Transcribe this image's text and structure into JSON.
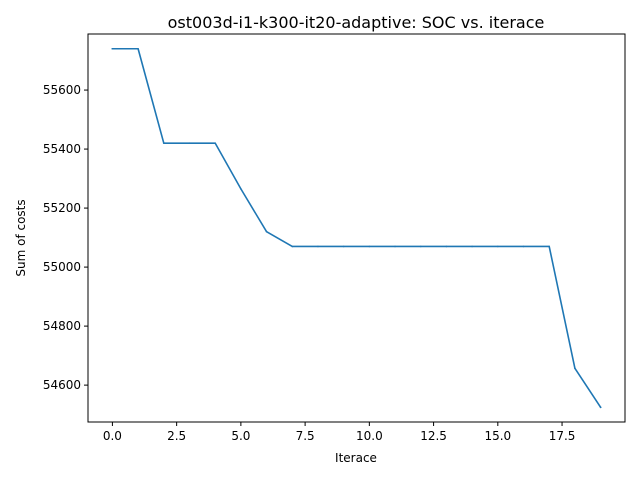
{
  "chart_data": {
    "type": "line",
    "title": "ost003d-i1-k300-it20-adaptive: SOC vs. iterace",
    "xlabel": "Iterace",
    "ylabel": "Sum of costs",
    "xlim": [
      -0.95,
      19.95
    ],
    "ylim": [
      54475,
      55790
    ],
    "x_ticks": [
      0.0,
      2.5,
      5.0,
      7.5,
      10.0,
      12.5,
      15.0,
      17.5
    ],
    "x_tick_labels": [
      "0.0",
      "2.5",
      "5.0",
      "7.5",
      "10.0",
      "12.5",
      "15.0",
      "17.5"
    ],
    "y_ticks": [
      54600,
      54800,
      55000,
      55200,
      55400,
      55600
    ],
    "y_tick_labels": [
      "54600",
      "54800",
      "55000",
      "55200",
      "55400",
      "55600"
    ],
    "grid": false,
    "series": [
      {
        "color": "#1f77b4",
        "x": [
          0,
          1,
          2,
          3,
          4,
          5,
          6,
          7,
          8,
          9,
          10,
          11,
          12,
          13,
          14,
          15,
          16,
          17,
          18,
          19
        ],
        "values": [
          55740,
          55740,
          55420,
          55420,
          55420,
          55265,
          55120,
          55070,
          55070,
          55070,
          55070,
          55070,
          55070,
          55070,
          55070,
          55070,
          55070,
          55070,
          54657,
          54525
        ]
      }
    ]
  }
}
